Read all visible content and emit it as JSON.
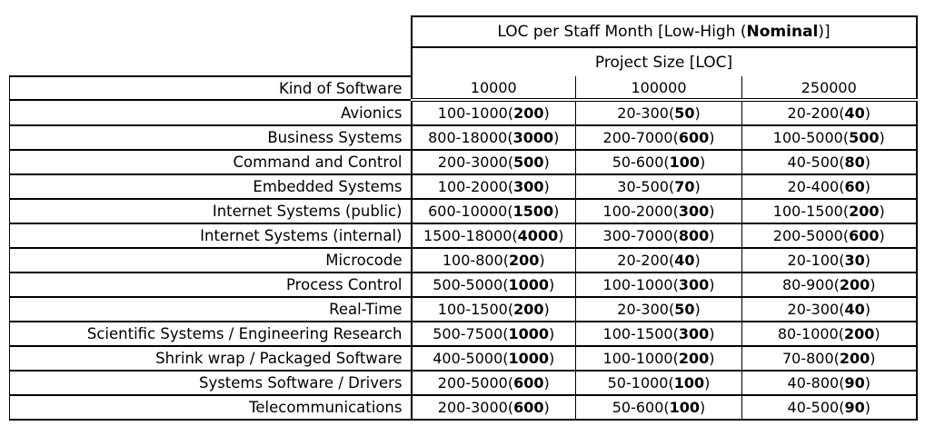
{
  "colors": {
    "background": "#ffffff",
    "text": "#000000",
    "border": "#000000"
  },
  "table": {
    "title": {
      "prefix": "LOC per Staff Month [Low-High (",
      "emphasis": "Nominal",
      "suffix": ")]"
    },
    "project_size_header": "Project Size [LOC]",
    "corner_header": "Kind of Software",
    "size_columns": [
      "10000",
      "100000",
      "250000"
    ],
    "rows": [
      {
        "label": "Avionics",
        "cells": [
          {
            "range": "100-1000",
            "nominal": "200"
          },
          {
            "range": "20-300",
            "nominal": "50"
          },
          {
            "range": "20-200",
            "nominal": "40"
          }
        ]
      },
      {
        "label": "Business Systems",
        "cells": [
          {
            "range": "800-18000",
            "nominal": "3000"
          },
          {
            "range": "200-7000",
            "nominal": "600"
          },
          {
            "range": "100-5000",
            "nominal": "500"
          }
        ]
      },
      {
        "label": "Command and Control",
        "cells": [
          {
            "range": "200-3000",
            "nominal": "500"
          },
          {
            "range": "50-600",
            "nominal": "100"
          },
          {
            "range": "40-500",
            "nominal": "80"
          }
        ]
      },
      {
        "label": "Embedded Systems",
        "cells": [
          {
            "range": "100-2000",
            "nominal": "300"
          },
          {
            "range": "30-500",
            "nominal": "70"
          },
          {
            "range": "20-400",
            "nominal": "60"
          }
        ]
      },
      {
        "label": "Internet Systems (public)",
        "cells": [
          {
            "range": "600-10000",
            "nominal": "1500"
          },
          {
            "range": "100-2000",
            "nominal": "300"
          },
          {
            "range": "100-1500",
            "nominal": "200"
          }
        ]
      },
      {
        "label": "Internet Systems (internal)",
        "cells": [
          {
            "range": "1500-18000",
            "nominal": "4000"
          },
          {
            "range": "300-7000",
            "nominal": "800"
          },
          {
            "range": "200-5000",
            "nominal": "600"
          }
        ]
      },
      {
        "label": "Microcode",
        "cells": [
          {
            "range": "100-800",
            "nominal": "200"
          },
          {
            "range": "20-200",
            "nominal": "40"
          },
          {
            "range": "20-100",
            "nominal": "30"
          }
        ]
      },
      {
        "label": "Process Control",
        "cells": [
          {
            "range": "500-5000",
            "nominal": "1000"
          },
          {
            "range": "100-1000",
            "nominal": "300"
          },
          {
            "range": "80-900",
            "nominal": "200"
          }
        ]
      },
      {
        "label": "Real-Time",
        "cells": [
          {
            "range": "100-1500",
            "nominal": "200"
          },
          {
            "range": "20-300",
            "nominal": "50"
          },
          {
            "range": "20-300",
            "nominal": "40"
          }
        ]
      },
      {
        "label": "Scientific Systems / Engineering Research",
        "cells": [
          {
            "range": "500-7500",
            "nominal": "1000"
          },
          {
            "range": "100-1500",
            "nominal": "300"
          },
          {
            "range": "80-1000",
            "nominal": "200"
          }
        ]
      },
      {
        "label": "Shrink wrap / Packaged Software",
        "cells": [
          {
            "range": "400-5000",
            "nominal": "1000"
          },
          {
            "range": "100-1000",
            "nominal": "200"
          },
          {
            "range": "70-800",
            "nominal": "200"
          }
        ]
      },
      {
        "label": "Systems Software / Drivers",
        "cells": [
          {
            "range": "200-5000",
            "nominal": "600"
          },
          {
            "range": "50-1000",
            "nominal": "100"
          },
          {
            "range": "40-800",
            "nominal": "90"
          }
        ]
      },
      {
        "label": "Telecommunications",
        "cells": [
          {
            "range": "200-3000",
            "nominal": "600"
          },
          {
            "range": "50-600",
            "nominal": "100"
          },
          {
            "range": "40-500",
            "nominal": "90"
          }
        ]
      }
    ]
  }
}
